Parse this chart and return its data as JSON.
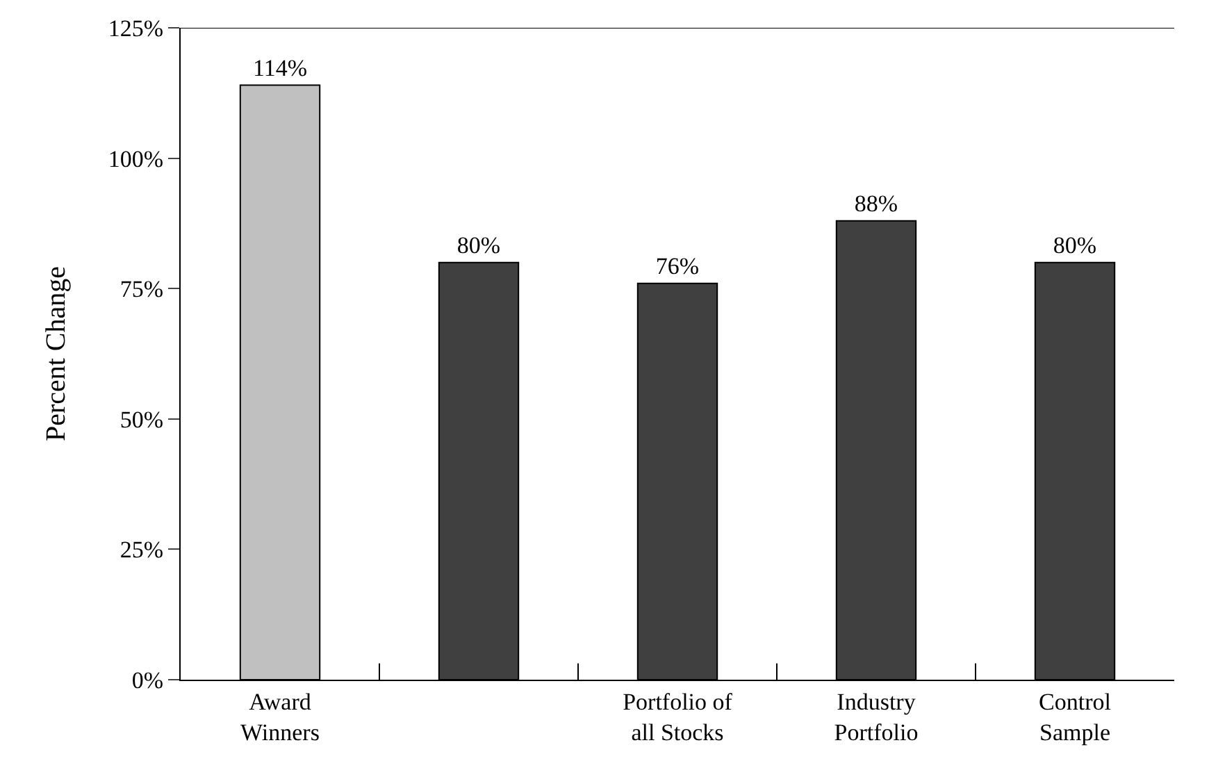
{
  "chart_data": {
    "type": "bar",
    "ylabel": "Percent Change",
    "categories": [
      "Award\nWinners",
      null,
      "Portfolio of\nall Stocks",
      "Industry\nPortfolio",
      "Control\nSample"
    ],
    "values": [
      114,
      80,
      76,
      88,
      80
    ],
    "colors": [
      "#c0c0c0",
      "#404040",
      "#404040",
      "#404040",
      "#404040"
    ],
    "value_labels": [
      "114%",
      "80%",
      "76%",
      "88%",
      "80%"
    ],
    "ylim": [
      0,
      125
    ],
    "yticks": [
      {
        "value": 0,
        "label": "0%"
      },
      {
        "value": 25,
        "label": "25%"
      },
      {
        "value": 50,
        "label": "50%"
      },
      {
        "value": 75,
        "label": "75%"
      },
      {
        "value": 100,
        "label": "100%"
      },
      {
        "value": 125,
        "label": "125%"
      }
    ]
  }
}
